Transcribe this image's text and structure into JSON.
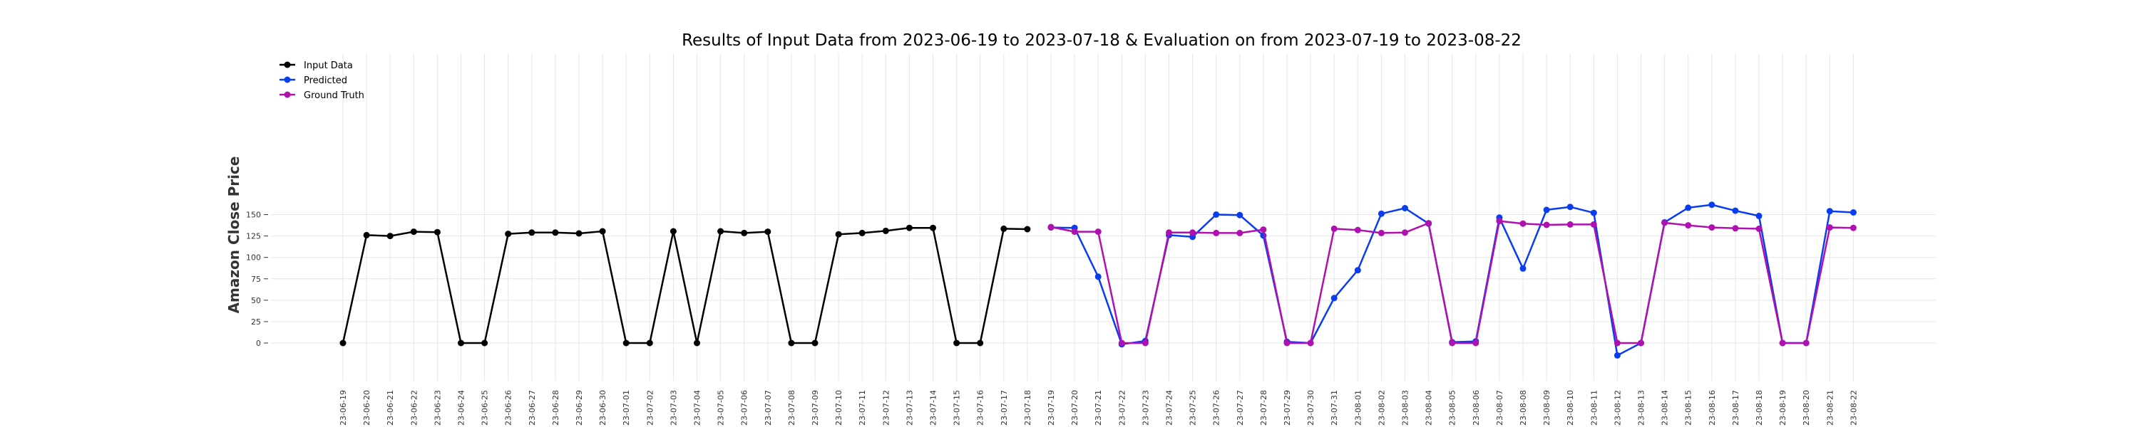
{
  "chart_data": {
    "type": "line",
    "title": "Results of Input Data from 2023-06-19 to 2023-07-18 & Evaluation on from 2023-07-19 to 2023-08-22",
    "xlabel": "",
    "ylabel": "Amazon Close Price",
    "ylim": [
      -22,
      170
    ],
    "yticks": [
      0,
      25,
      50,
      75,
      100,
      125,
      150
    ],
    "grid": true,
    "legend_position": "top-left",
    "categories": [
      "2023-06-19",
      "2023-06-20",
      "2023-06-21",
      "2023-06-22",
      "2023-06-23",
      "2023-06-24",
      "2023-06-25",
      "2023-06-26",
      "2023-06-27",
      "2023-06-28",
      "2023-06-29",
      "2023-06-30",
      "2023-07-01",
      "2023-07-02",
      "2023-07-03",
      "2023-07-04",
      "2023-07-05",
      "2023-07-06",
      "2023-07-07",
      "2023-07-08",
      "2023-07-09",
      "2023-07-10",
      "2023-07-11",
      "2023-07-12",
      "2023-07-13",
      "2023-07-14",
      "2023-07-15",
      "2023-07-16",
      "2023-07-17",
      "2023-07-18",
      "2023-07-19",
      "2023-07-20",
      "2023-07-21",
      "2023-07-22",
      "2023-07-23",
      "2023-07-24",
      "2023-07-25",
      "2023-07-26",
      "2023-07-27",
      "2023-07-28",
      "2023-07-29",
      "2023-07-30",
      "2023-07-31",
      "2023-08-01",
      "2023-08-02",
      "2023-08-03",
      "2023-08-04",
      "2023-08-05",
      "2023-08-06",
      "2023-08-07",
      "2023-08-08",
      "2023-08-09",
      "2023-08-10",
      "2023-08-11",
      "2023-08-12",
      "2023-08-13",
      "2023-08-14",
      "2023-08-15",
      "2023-08-16",
      "2023-08-17",
      "2023-08-18",
      "2023-08-19",
      "2023-08-20",
      "2023-08-21",
      "2023-08-22"
    ],
    "tick_labels": [
      "23-06-19",
      "23-06-20",
      "23-06-21",
      "23-06-22",
      "23-06-23",
      "23-06-24",
      "23-06-25",
      "23-06-26",
      "23-06-27",
      "23-06-28",
      "23-06-29",
      "23-06-30",
      "23-07-01",
      "23-07-02",
      "23-07-03",
      "23-07-04",
      "23-07-05",
      "23-07-06",
      "23-07-07",
      "23-07-08",
      "23-07-09",
      "23-07-10",
      "23-07-11",
      "23-07-12",
      "23-07-13",
      "23-07-14",
      "23-07-15",
      "23-07-16",
      "23-07-17",
      "23-07-18",
      "23-07-19",
      "23-07-20",
      "23-07-21",
      "23-07-22",
      "23-07-23",
      "23-07-24",
      "23-07-25",
      "23-07-26",
      "23-07-27",
      "23-07-28",
      "23-07-29",
      "23-07-30",
      "23-07-31",
      "23-08-01",
      "23-08-02",
      "23-08-03",
      "23-08-04",
      "23-08-05",
      "23-08-06",
      "23-08-07",
      "23-08-08",
      "23-08-09",
      "23-08-10",
      "23-08-11",
      "23-08-12",
      "23-08-13",
      "23-08-14",
      "23-08-15",
      "23-08-16",
      "23-08-17",
      "23-08-18",
      "23-08-19",
      "23-08-20",
      "23-08-21",
      "23-08-22"
    ],
    "series": [
      {
        "name": "Input Data",
        "color": "#000000",
        "x": [
          "2023-06-19",
          "2023-06-20",
          "2023-06-21",
          "2023-06-22",
          "2023-06-23",
          "2023-06-24",
          "2023-06-25",
          "2023-06-26",
          "2023-06-27",
          "2023-06-28",
          "2023-06-29",
          "2023-06-30",
          "2023-07-01",
          "2023-07-02",
          "2023-07-03",
          "2023-07-04",
          "2023-07-05",
          "2023-07-06",
          "2023-07-07",
          "2023-07-08",
          "2023-07-09",
          "2023-07-10",
          "2023-07-11",
          "2023-07-12",
          "2023-07-13",
          "2023-07-14",
          "2023-07-15",
          "2023-07-16",
          "2023-07-17",
          "2023-07-18"
        ],
        "values": [
          0,
          126,
          125,
          130,
          129.5,
          0,
          0,
          127.5,
          129,
          129,
          128,
          130.5,
          0,
          0,
          130.5,
          0,
          130.5,
          128.5,
          130,
          0,
          0,
          127,
          128.5,
          131,
          134.5,
          134.5,
          0,
          0,
          133.5,
          133
        ]
      },
      {
        "name": "Predicted",
        "color": "#0a3cf0",
        "x": [
          "2023-07-19",
          "2023-07-20",
          "2023-07-21",
          "2023-07-22",
          "2023-07-23",
          "2023-07-24",
          "2023-07-25",
          "2023-07-26",
          "2023-07-27",
          "2023-07-28",
          "2023-07-29",
          "2023-07-30",
          "2023-07-31",
          "2023-08-01",
          "2023-08-02",
          "2023-08-03",
          "2023-08-04",
          "2023-08-05",
          "2023-08-06",
          "2023-08-07",
          "2023-08-08",
          "2023-08-09",
          "2023-08-10",
          "2023-08-11",
          "2023-08-12",
          "2023-08-13",
          "2023-08-14",
          "2023-08-15",
          "2023-08-16",
          "2023-08-17",
          "2023-08-18",
          "2023-08-19",
          "2023-08-20",
          "2023-08-21",
          "2023-08-22"
        ],
        "values": [
          135,
          134.5,
          77.5,
          -1.5,
          2.5,
          126,
          124,
          150,
          149.5,
          125.5,
          1.5,
          0,
          52.5,
          85,
          151,
          157.5,
          139.5,
          1,
          2,
          146.5,
          87,
          155.5,
          159,
          152,
          -14.5,
          0,
          141,
          158,
          161.5,
          154.5,
          148.5,
          0,
          0,
          154,
          152.5
        ]
      },
      {
        "name": "Ground Truth",
        "color": "#b010b0",
        "x": [
          "2023-07-19",
          "2023-07-20",
          "2023-07-21",
          "2023-07-22",
          "2023-07-23",
          "2023-07-24",
          "2023-07-25",
          "2023-07-26",
          "2023-07-27",
          "2023-07-28",
          "2023-07-29",
          "2023-07-30",
          "2023-07-31",
          "2023-08-01",
          "2023-08-02",
          "2023-08-03",
          "2023-08-04",
          "2023-08-05",
          "2023-08-06",
          "2023-08-07",
          "2023-08-08",
          "2023-08-09",
          "2023-08-10",
          "2023-08-11",
          "2023-08-12",
          "2023-08-13",
          "2023-08-14",
          "2023-08-15",
          "2023-08-16",
          "2023-08-17",
          "2023-08-18",
          "2023-08-19",
          "2023-08-20",
          "2023-08-21",
          "2023-08-22"
        ],
        "values": [
          135.5,
          130,
          130,
          0,
          0,
          129,
          129,
          128.5,
          128.5,
          132.5,
          0,
          0,
          133.5,
          132,
          128.5,
          129,
          140,
          0,
          0,
          142.5,
          139.5,
          138,
          138.5,
          138.5,
          0,
          0,
          140.5,
          137.5,
          135,
          134,
          133.5,
          0,
          0,
          135,
          134.5
        ]
      }
    ]
  }
}
